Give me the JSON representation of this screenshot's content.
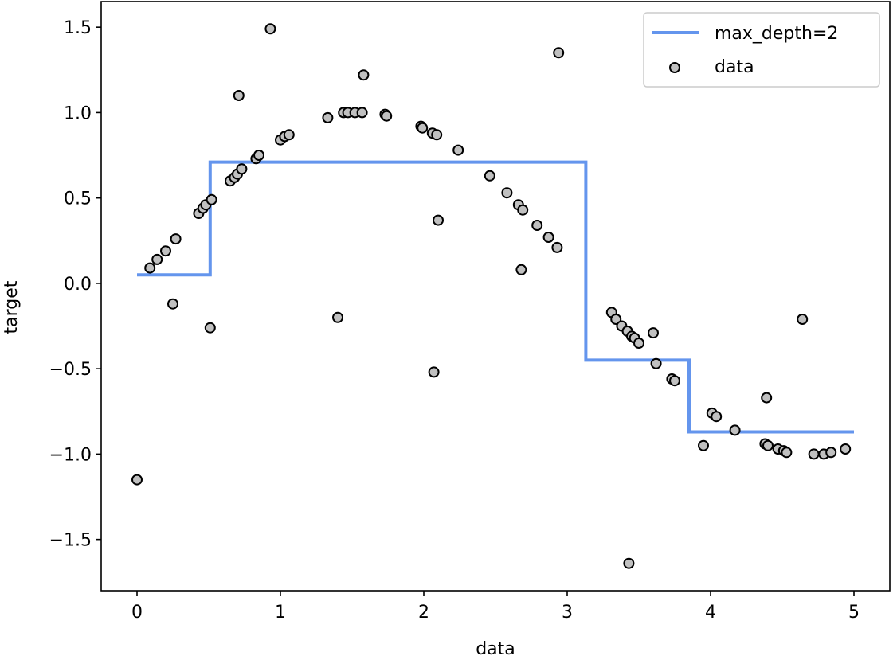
{
  "chart_data": {
    "type": "scatter",
    "title": "",
    "xlabel": "data",
    "ylabel": "target",
    "xlim": [
      -0.25,
      5.25
    ],
    "ylim": [
      -1.8,
      1.65
    ],
    "xticks": [
      {
        "value": 0,
        "label": "0"
      },
      {
        "value": 1,
        "label": "1"
      },
      {
        "value": 2,
        "label": "2"
      },
      {
        "value": 3,
        "label": "3"
      },
      {
        "value": 4,
        "label": "4"
      },
      {
        "value": 5,
        "label": "5"
      }
    ],
    "yticks": [
      {
        "value": 1.5,
        "label": "1.5"
      },
      {
        "value": 1.0,
        "label": "1.0"
      },
      {
        "value": 0.5,
        "label": "0.5"
      },
      {
        "value": 0.0,
        "label": "0.0"
      },
      {
        "value": -0.5,
        "label": "−0.5"
      },
      {
        "value": -1.0,
        "label": "−1.0"
      },
      {
        "value": -1.5,
        "label": "−1.5"
      }
    ],
    "grid": false,
    "legend_position": "top-right",
    "series": [
      {
        "name": "max_depth=2",
        "kind": "step-line",
        "color": "#6495ED",
        "x": [
          0.0,
          0.51,
          0.51,
          3.13,
          3.13,
          3.85,
          3.85,
          5.0
        ],
        "y": [
          0.05,
          0.05,
          0.71,
          0.71,
          -0.45,
          -0.45,
          -0.87,
          -0.87
        ]
      },
      {
        "name": "data",
        "kind": "scatter",
        "color": "#c0c0c0",
        "edge_color": "#000000",
        "points": [
          [
            0.0,
            -1.15
          ],
          [
            0.09,
            0.09
          ],
          [
            0.14,
            0.14
          ],
          [
            0.2,
            0.19
          ],
          [
            0.25,
            -0.12
          ],
          [
            0.27,
            0.26
          ],
          [
            0.43,
            0.41
          ],
          [
            0.46,
            0.44
          ],
          [
            0.48,
            0.46
          ],
          [
            0.51,
            -0.26
          ],
          [
            0.52,
            0.49
          ],
          [
            0.65,
            0.6
          ],
          [
            0.68,
            0.62
          ],
          [
            0.7,
            0.64
          ],
          [
            0.71,
            1.1
          ],
          [
            0.73,
            0.67
          ],
          [
            0.83,
            0.73
          ],
          [
            0.85,
            0.75
          ],
          [
            0.93,
            1.49
          ],
          [
            1.0,
            0.84
          ],
          [
            1.03,
            0.86
          ],
          [
            1.06,
            0.87
          ],
          [
            1.33,
            0.97
          ],
          [
            1.4,
            -0.2
          ],
          [
            1.44,
            1.0
          ],
          [
            1.47,
            1.0
          ],
          [
            1.52,
            1.0
          ],
          [
            1.57,
            1.0
          ],
          [
            1.58,
            1.22
          ],
          [
            1.73,
            0.99
          ],
          [
            1.74,
            0.98
          ],
          [
            1.98,
            0.92
          ],
          [
            1.99,
            0.91
          ],
          [
            2.06,
            0.88
          ],
          [
            2.07,
            -0.52
          ],
          [
            2.09,
            0.87
          ],
          [
            2.1,
            0.37
          ],
          [
            2.24,
            0.78
          ],
          [
            2.46,
            0.63
          ],
          [
            2.58,
            0.53
          ],
          [
            2.66,
            0.46
          ],
          [
            2.68,
            0.08
          ],
          [
            2.69,
            0.43
          ],
          [
            2.79,
            0.34
          ],
          [
            2.87,
            0.27
          ],
          [
            2.93,
            0.21
          ],
          [
            2.94,
            1.35
          ],
          [
            3.31,
            -0.17
          ],
          [
            3.34,
            -0.21
          ],
          [
            3.38,
            -0.25
          ],
          [
            3.42,
            -0.28
          ],
          [
            3.43,
            -1.64
          ],
          [
            3.45,
            -0.31
          ],
          [
            3.47,
            -0.32
          ],
          [
            3.5,
            -0.35
          ],
          [
            3.6,
            -0.29
          ],
          [
            3.62,
            -0.47
          ],
          [
            3.73,
            -0.56
          ],
          [
            3.75,
            -0.57
          ],
          [
            3.95,
            -0.95
          ],
          [
            4.01,
            -0.76
          ],
          [
            4.04,
            -0.78
          ],
          [
            4.17,
            -0.86
          ],
          [
            4.38,
            -0.94
          ],
          [
            4.39,
            -0.67
          ],
          [
            4.4,
            -0.95
          ],
          [
            4.47,
            -0.97
          ],
          [
            4.51,
            -0.98
          ],
          [
            4.53,
            -0.99
          ],
          [
            4.64,
            -0.21
          ],
          [
            4.72,
            -1.0
          ],
          [
            4.79,
            -1.0
          ],
          [
            4.84,
            -0.99
          ],
          [
            4.94,
            -0.97
          ]
        ]
      }
    ]
  }
}
